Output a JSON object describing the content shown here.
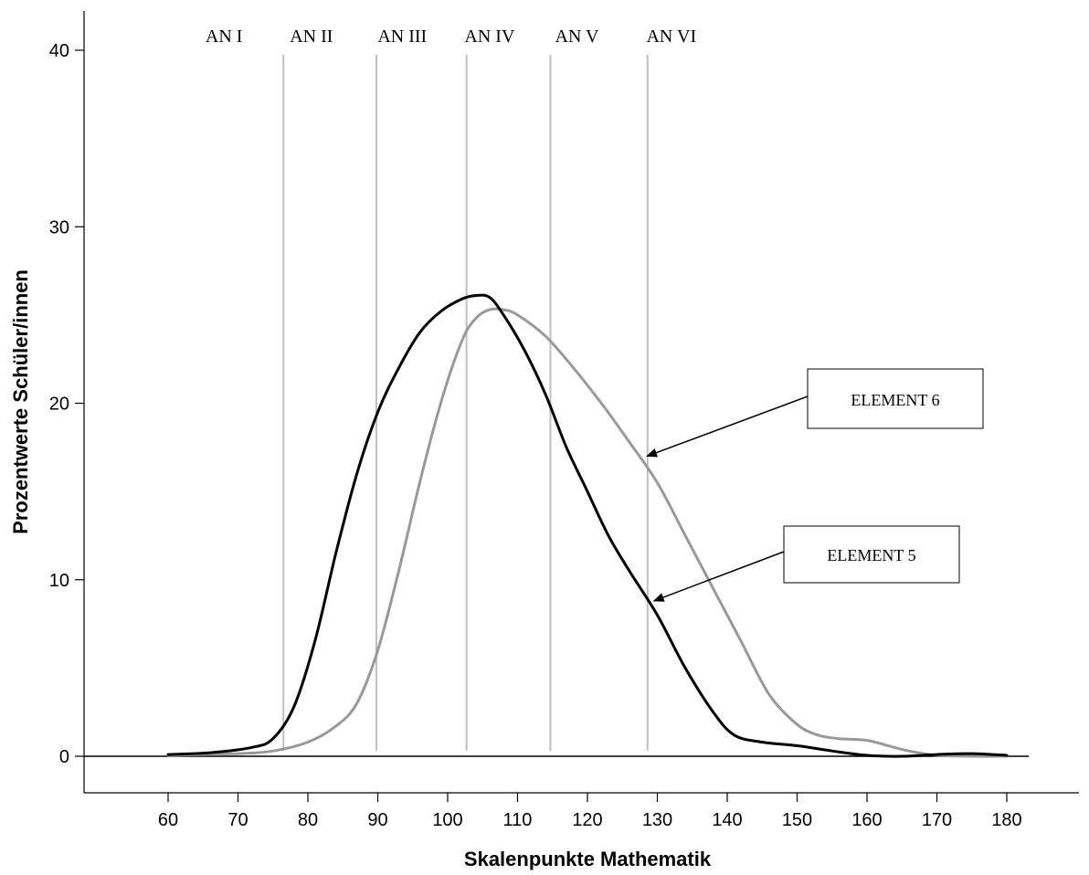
{
  "chart_data": {
    "type": "line",
    "xlabel": "Skalenpunkte Mathematik",
    "ylabel": "Prozentwerte Schüler/innen",
    "xlim": [
      60,
      180
    ],
    "ylim": [
      0,
      40
    ],
    "x_ticks": [
      60,
      70,
      80,
      90,
      100,
      110,
      120,
      130,
      140,
      150,
      160,
      170,
      180
    ],
    "y_ticks": [
      0,
      10,
      20,
      30,
      40
    ],
    "grid": false,
    "colors": {
      "element5": "#000000",
      "element6": "#999999",
      "bands": "#c0c0c0"
    },
    "bands": {
      "labels": [
        "AN I",
        "AN II",
        "AN III",
        "AN IV",
        "AN V",
        "AN VI"
      ],
      "label_x": [
        68,
        80.5,
        93.5,
        106,
        118.5,
        132
      ],
      "boundaries": [
        76.5,
        89.8,
        102.7,
        114.7,
        128.6
      ]
    },
    "series": [
      {
        "name": "ELEMENT 5",
        "x": [
          60,
          66,
          72,
          75,
          78,
          81,
          84,
          87,
          90,
          93,
          96,
          99,
          102,
          104,
          106,
          108,
          111,
          114,
          117,
          120,
          123,
          126,
          130,
          134,
          138,
          141,
          145,
          150,
          155,
          160,
          165,
          170,
          175,
          180
        ],
        "y": [
          0.1,
          0.2,
          0.5,
          1.0,
          2.8,
          6.5,
          11.5,
          16.0,
          19.5,
          22.0,
          24.0,
          25.2,
          25.9,
          26.1,
          26.0,
          25.0,
          23.0,
          20.5,
          17.5,
          15.0,
          12.5,
          10.5,
          8.0,
          5.0,
          2.5,
          1.2,
          0.8,
          0.6,
          0.3,
          0.05,
          0.0,
          0.1,
          0.15,
          0.05
        ]
      },
      {
        "name": "ELEMENT 6",
        "x": [
          60,
          70,
          75,
          80,
          84,
          87,
          90,
          93,
          96,
          99,
          102,
          104,
          106,
          108,
          110,
          114,
          118,
          122,
          126,
          130,
          134,
          138,
          142,
          146,
          150,
          153,
          156,
          160,
          163,
          166,
          170,
          175,
          180
        ],
        "y": [
          0.05,
          0.15,
          0.3,
          0.8,
          1.7,
          3.0,
          6.0,
          10.5,
          15.5,
          20.0,
          23.5,
          24.8,
          25.3,
          25.3,
          25.0,
          23.8,
          22.0,
          20.0,
          17.8,
          15.5,
          12.5,
          9.5,
          6.5,
          3.5,
          1.8,
          1.2,
          1.0,
          0.9,
          0.6,
          0.3,
          0.05,
          0.0,
          0.0
        ]
      }
    ],
    "annotations": [
      {
        "text": "ELEMENT 6",
        "series": "ELEMENT 6",
        "target": [
          128.5,
          17
        ]
      },
      {
        "text": "ELEMENT 5",
        "series": "ELEMENT 5",
        "target": [
          129.5,
          8.8
        ]
      }
    ]
  }
}
